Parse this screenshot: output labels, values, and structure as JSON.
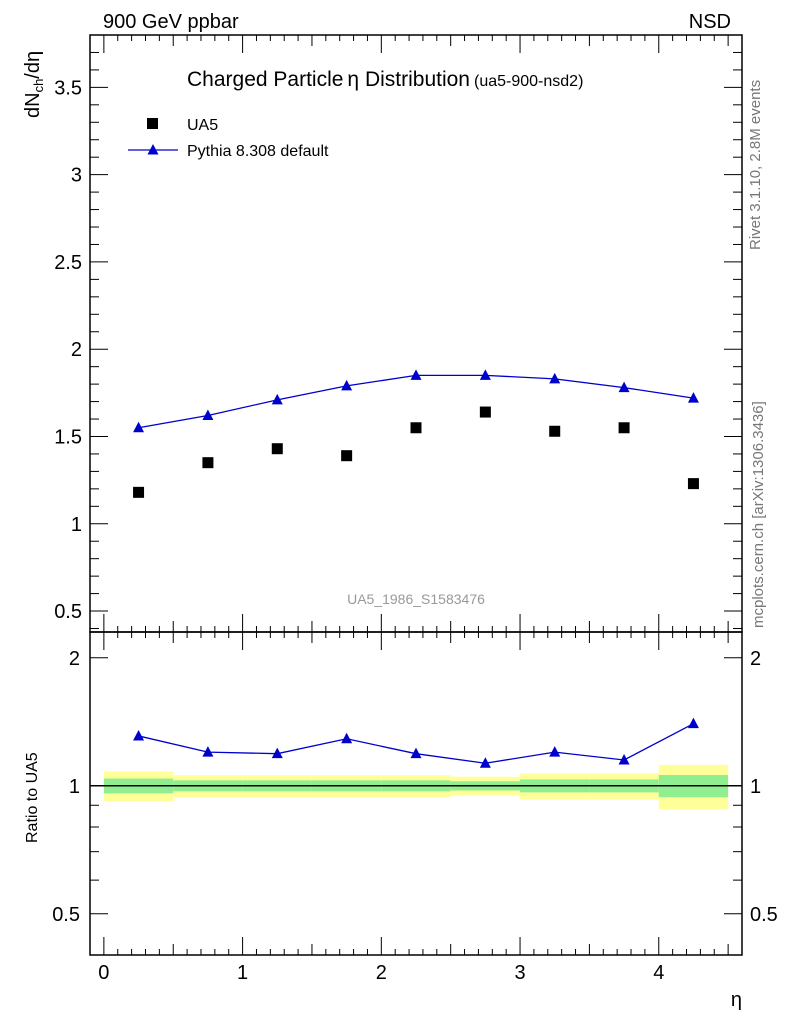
{
  "header": {
    "left": "900 GeV ppbar",
    "right": "NSD"
  },
  "plot_title": {
    "main": "Charged Particle",
    "symbol": "η",
    "rest": " Distribution",
    "tag": "(ua5-900-nsd2)"
  },
  "side_labels": {
    "rivet": "Rivet 3.1.10,  2.8M events",
    "mcplots": "mcplots.cern.ch [arXiv:1306.3436]"
  },
  "watermark": "UA5_1986_S1583476",
  "legend": {
    "data_label": "UA5",
    "mc_label": "Pythia 8.308 default"
  },
  "colors": {
    "data": "#000000",
    "mc": "#0000cc",
    "band_inner": "#90ee90",
    "band_outer": "#ffff99"
  },
  "chart_data": [
    {
      "type": "scatter",
      "panel": "main",
      "ylabel_parts": [
        "dN",
        "ch",
        "/dη"
      ],
      "ylim": [
        0.38,
        3.8
      ],
      "xlim": [
        -0.1,
        4.6
      ],
      "yticks": [
        "0.5",
        "1",
        "1.5",
        "2",
        "2.5",
        "3",
        "3.5"
      ],
      "series": [
        {
          "name": "UA5",
          "x": [
            0.25,
            0.75,
            1.25,
            1.75,
            2.25,
            2.75,
            3.25,
            3.75,
            4.25
          ],
          "y": [
            1.18,
            1.35,
            1.43,
            1.39,
            1.55,
            1.64,
            1.53,
            1.55,
            1.23
          ]
        },
        {
          "name": "Pythia 8.308 default",
          "x": [
            0.25,
            0.75,
            1.25,
            1.75,
            2.25,
            2.75,
            3.25,
            3.75,
            4.25
          ],
          "y": [
            1.55,
            1.62,
            1.71,
            1.79,
            1.85,
            1.85,
            1.83,
            1.78,
            1.72
          ]
        }
      ]
    },
    {
      "type": "line",
      "panel": "ratio",
      "ylabel": "Ratio to UA5",
      "xlabel": "η",
      "ylim": [
        0.4,
        2.3
      ],
      "xlim": [
        -0.1,
        4.6
      ],
      "xticks": [
        "0",
        "1",
        "2",
        "3",
        "4"
      ],
      "yticks": [
        "0.5",
        "1",
        "2"
      ],
      "series": [
        {
          "name": "Pythia 8.308 default",
          "x": [
            0.25,
            0.75,
            1.25,
            1.75,
            2.25,
            2.75,
            3.25,
            3.75,
            4.25
          ],
          "y": [
            1.31,
            1.2,
            1.19,
            1.29,
            1.19,
            1.13,
            1.2,
            1.15,
            1.4
          ]
        }
      ],
      "uncertainty_bands": {
        "x_edges": [
          0.0,
          0.5,
          1.0,
          1.5,
          2.0,
          2.5,
          3.0,
          3.5,
          4.0,
          4.5
        ],
        "inner": [
          0.04,
          0.03,
          0.03,
          0.03,
          0.03,
          0.025,
          0.035,
          0.035,
          0.06
        ],
        "outer": [
          0.08,
          0.06,
          0.06,
          0.06,
          0.06,
          0.05,
          0.07,
          0.07,
          0.12
        ]
      }
    }
  ]
}
